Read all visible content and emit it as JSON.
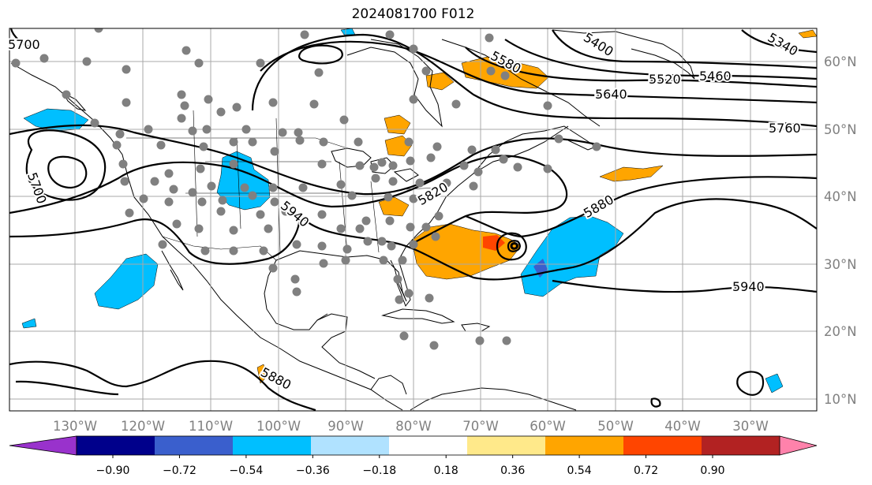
{
  "title": "2024081700 F012",
  "map": {
    "lon_labels": [
      "130°W",
      "120°W",
      "110°W",
      "100°W",
      "90°W",
      "80°W",
      "70°W",
      "60°W",
      "50°W",
      "40°W",
      "30°W"
    ],
    "lat_labels": [
      "60°N",
      "50°N",
      "40°N",
      "30°N",
      "20°N",
      "10°N"
    ],
    "contour_labels": [
      "5700",
      "5400",
      "5340",
      "5580",
      "5520",
      "5460",
      "5640",
      "5760",
      "5700",
      "5820",
      "5880",
      "5940",
      "5940",
      "5880"
    ]
  },
  "colorbar": {
    "ticks": [
      "−0.90",
      "−0.72",
      "−0.54",
      "−0.36",
      "−0.18",
      "0.18",
      "0.36",
      "0.54",
      "0.72",
      "0.90"
    ],
    "colors": [
      "#9932cc",
      "#00008b",
      "#3a5fcd",
      "#00bfff",
      "#b0e2ff",
      "#ffffff",
      "#ffe98a",
      "#ffa500",
      "#ff4500",
      "#b22222",
      "#ff82ab"
    ],
    "under_color": "#9932cc",
    "over_color": "#ff82ab"
  },
  "colors": {
    "grid": "#a9a9a9",
    "contour": "#000000",
    "station_dot": "#808080",
    "axis_label": "#808080"
  }
}
